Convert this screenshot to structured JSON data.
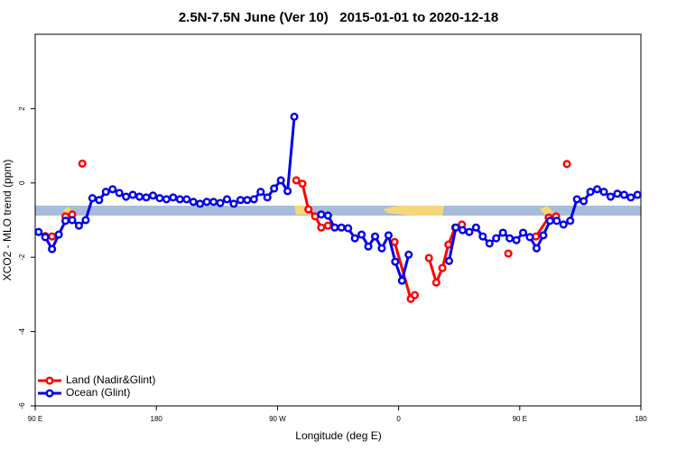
{
  "chart_data": {
    "type": "line",
    "title": "2.5N-7.5N June (Ver 10)   2015-01-01 to 2020-12-18",
    "x_label": "Longitude (deg E)",
    "y_label": "XCO2 - MLO trend (ppm)",
    "xlim": [
      90,
      540
    ],
    "xticks": [
      {
        "value": 90,
        "label": "90 E"
      },
      180,
      {
        "value": 270,
        "label": "90 W"
      },
      {
        "value": 360,
        "label": "0"
      },
      {
        "value": 450,
        "label": "90 E"
      },
      {
        "value": 540,
        "label": "180"
      }
    ],
    "ylim": [
      -6,
      4
    ],
    "yticks": [
      -6,
      -4,
      -2,
      0,
      2
    ],
    "legend": "bottom-left",
    "series": [
      {
        "name": "Land (Nadir&Glint)",
        "color": "#ff0000",
        "x": [
          97.5,
          102.5,
          107.5,
          112.5,
          117.5,
          121,
          125,
          130,
          284,
          288.5,
          293,
          298,
          302.5,
          307.5,
          330,
          357,
          369,
          372,
          378,
          382.5,
          388,
          392.5,
          397,
          402,
          407,
          425,
          441.5,
          452,
          462,
          471.5,
          477,
          481,
          485
        ],
        "values": [
          -1.43,
          -1.44,
          null,
          -0.9,
          -0.85,
          null,
          0.52,
          null,
          0.07,
          -0.02,
          -0.71,
          -0.9,
          -1.2,
          -1.15,
          null,
          -1.59,
          -3.12,
          -3.02,
          null,
          -2.02,
          -2.68,
          -2.29,
          -1.66,
          -1.2,
          -1.12,
          null,
          -1.9,
          null,
          -1.44,
          -0.93,
          -0.9,
          null,
          0.51
        ]
      },
      {
        "name": "Ocean (Glint)",
        "color": "#0000ee",
        "x": [
          92.5,
          97.5,
          102.5,
          107.5,
          112.5,
          117.5,
          122.5,
          127.5,
          132.5,
          137.5,
          142.5,
          147.5,
          152.5,
          157.5,
          162.5,
          167.5,
          172.5,
          177.5,
          182.5,
          187.5,
          192.5,
          197.5,
          202.5,
          207.5,
          212.5,
          217.5,
          222.5,
          227.5,
          232.5,
          237.5,
          242.5,
          247.5,
          252.5,
          257.5,
          262.5,
          267.5,
          272.5,
          277.5,
          282.5,
          292.5,
          302.5,
          307.5,
          312.5,
          317.5,
          322.5,
          327.5,
          332.5,
          337.5,
          342.5,
          347.5,
          352.5,
          357.5,
          362.5,
          367.5,
          382.5,
          397.5,
          402.5,
          407.5,
          412.5,
          417.5,
          422.5,
          427.5,
          432.5,
          437.5,
          442.5,
          447.5,
          452.5,
          457.5,
          462.5,
          467.5,
          472.5,
          477.5,
          482.5,
          487.5,
          492.5,
          497.5,
          502.5,
          507.5,
          512.5,
          517.5,
          522.5,
          527.5,
          532.5,
          537.5
        ],
        "values": [
          -1.32,
          -1.46,
          -1.78,
          -1.39,
          -1.02,
          -1.0,
          -1.15,
          -1.0,
          -0.41,
          -0.46,
          -0.24,
          -0.17,
          -0.27,
          -0.37,
          -0.32,
          -0.37,
          -0.39,
          -0.34,
          -0.41,
          -0.44,
          -0.39,
          -0.44,
          -0.44,
          -0.51,
          -0.56,
          -0.51,
          -0.51,
          -0.54,
          -0.44,
          -0.56,
          -0.46,
          -0.46,
          -0.44,
          -0.24,
          -0.39,
          -0.15,
          0.07,
          -0.22,
          1.78,
          null,
          -0.85,
          -0.88,
          -1.2,
          -1.2,
          -1.22,
          -1.49,
          -1.39,
          -1.71,
          -1.44,
          -1.76,
          -1.41,
          -2.12,
          -2.63,
          -1.93,
          null,
          -2.1,
          -1.2,
          -1.27,
          -1.32,
          -1.2,
          -1.44,
          -1.63,
          -1.49,
          -1.34,
          -1.49,
          -1.54,
          -1.34,
          -1.46,
          -1.76,
          -1.41,
          -1.02,
          -1.02,
          -1.12,
          -1.02,
          -0.44,
          -0.49,
          -0.24,
          -0.17,
          -0.24,
          -0.37,
          -0.29,
          -0.32,
          -0.39,
          -0.32
        ]
      }
    ]
  }
}
